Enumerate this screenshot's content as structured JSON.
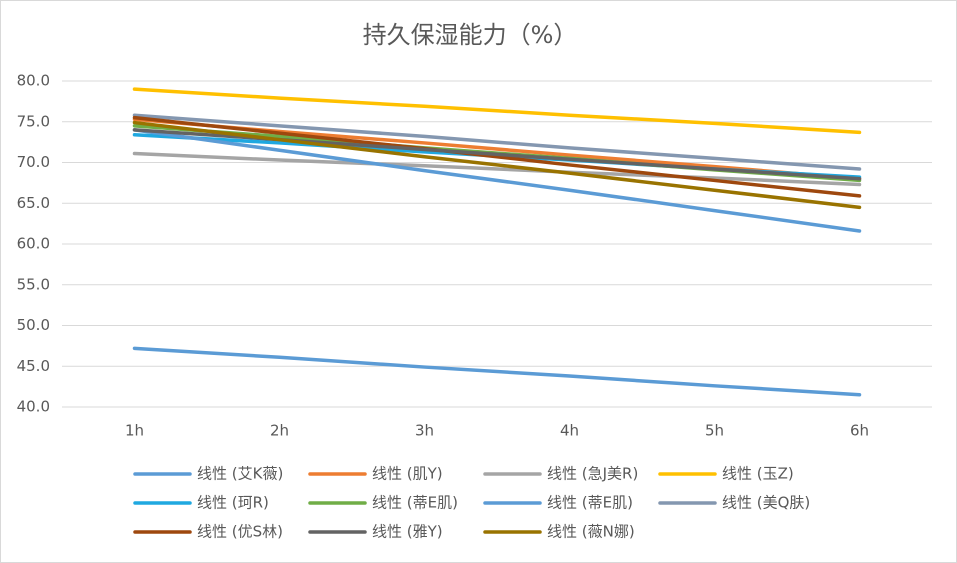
{
  "chart_data": {
    "type": "line",
    "title": "持久保湿能力（%）",
    "categories": [
      "1h",
      "2h",
      "3h",
      "4h",
      "5h",
      "6h"
    ],
    "ylim": [
      40,
      80
    ],
    "yticks": [
      {
        "value": 40,
        "label": "40.0"
      },
      {
        "value": 45,
        "label": "45.0"
      },
      {
        "value": 50,
        "label": "50.0"
      },
      {
        "value": 55,
        "label": "55.0"
      },
      {
        "value": 60,
        "label": "60.0"
      },
      {
        "value": 65,
        "label": "65.0"
      },
      {
        "value": 70,
        "label": "70.0"
      },
      {
        "value": 75,
        "label": "75.0"
      },
      {
        "value": 80,
        "label": "80.0"
      }
    ],
    "grid": true,
    "legend": "bottom",
    "series": [
      {
        "name": "线性 (艾K薇)",
        "color": "#5b9bd5",
        "values": [
          47.2,
          46.1,
          44.9,
          43.8,
          42.6,
          41.5
        ]
      },
      {
        "name": "线性 (肌Y)",
        "color": "#ed7d31",
        "values": [
          75.3,
          73.8,
          72.4,
          70.9,
          69.5,
          68.0
        ]
      },
      {
        "name": "线性 (急J美R)",
        "color": "#a5a5a5",
        "values": [
          71.1,
          70.3,
          69.6,
          68.8,
          68.1,
          67.3
        ]
      },
      {
        "name": "线性 (玉Z)",
        "color": "#ffc000",
        "values": [
          79.0,
          77.9,
          76.9,
          75.8,
          74.8,
          73.7
        ]
      },
      {
        "name": "线性 (珂R)",
        "color": "#1fa8e0",
        "values": [
          73.4,
          72.4,
          71.3,
          70.3,
          69.2,
          68.2
        ]
      },
      {
        "name": "线性 (蒂E肌)",
        "color": "#70ad47",
        "values": [
          74.5,
          73.2,
          71.8,
          70.5,
          69.1,
          67.8
        ]
      },
      {
        "name": "线性 (蒂E肌)",
        "color": "#5b9bd5",
        "values": [
          74.0,
          71.5,
          69.0,
          66.6,
          64.1,
          61.6
        ]
      },
      {
        "name": "线性 (美Q肤)",
        "color": "#8497b0",
        "values": [
          75.8,
          74.5,
          73.2,
          71.8,
          70.5,
          69.2
        ]
      },
      {
        "name": "线性 (优S林)",
        "color": "#9e480e",
        "values": [
          75.5,
          73.6,
          71.7,
          69.7,
          67.8,
          65.9
        ]
      },
      {
        "name": "线性 (雅Y)",
        "color": "#636363",
        "values": [
          74.0,
          72.8,
          71.6,
          70.4,
          69.2,
          68.0
        ]
      },
      {
        "name": "线性 (薇N娜)",
        "color": "#997300",
        "values": [
          74.9,
          72.8,
          70.7,
          68.7,
          66.6,
          64.5
        ]
      }
    ]
  }
}
